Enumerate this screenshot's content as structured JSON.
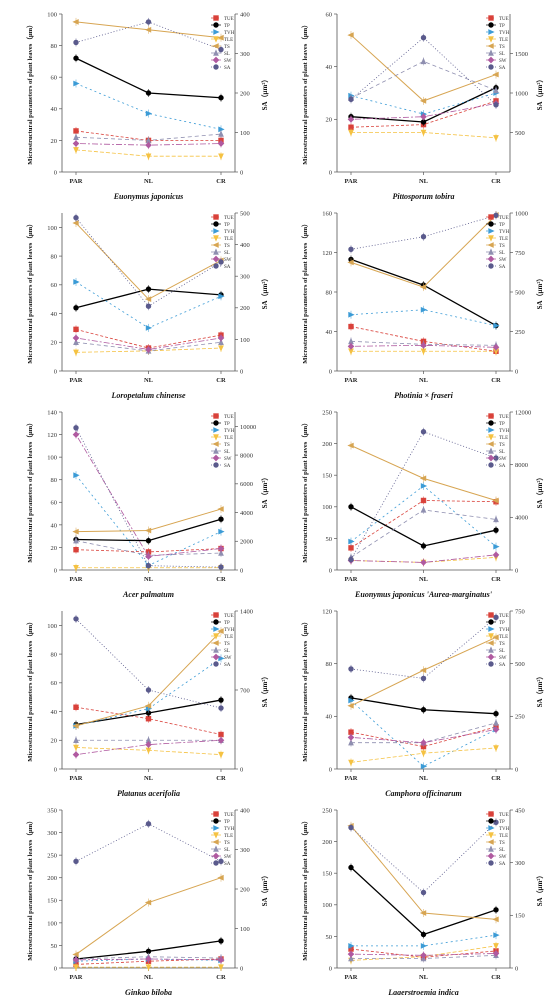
{
  "figure": {
    "x_categories": [
      "PAR",
      "NL",
      "CR"
    ],
    "left_axis_label": "Microstructural parameters of plant leaves（μm）",
    "right_axis_label": "SA（μm²）",
    "legend_entries": [
      "TUE",
      "TP",
      "TVH",
      "TLE",
      "TS",
      "SL",
      "SW",
      "SA"
    ],
    "series_colors": {
      "TUE": "#d9413a",
      "TP": "#000000",
      "TVH": "#3b9bd6",
      "TLE": "#f5c242",
      "TS": "#d7a552",
      "SL": "#8f8fb0",
      "SW": "#b05aa0",
      "SA": "#5a5a8c"
    }
  },
  "chart_data": [
    {
      "type": "line",
      "species": "Euonymus japonicus",
      "categories": [
        "PAR",
        "NL",
        "CR"
      ],
      "ylim_left": [
        0,
        100
      ],
      "yticks_left": [
        0,
        20,
        40,
        60,
        80,
        100
      ],
      "ylim_right": [
        0,
        400
      ],
      "yticks_right": [
        0,
        100,
        200,
        300,
        400
      ],
      "series": [
        {
          "name": "TUE",
          "values": [
            26,
            20,
            20
          ],
          "axis": "left"
        },
        {
          "name": "TP",
          "values": [
            72,
            50,
            47
          ],
          "axis": "left"
        },
        {
          "name": "TVH",
          "values": [
            56,
            37,
            27
          ],
          "axis": "left"
        },
        {
          "name": "TLE",
          "values": [
            14,
            10,
            10
          ],
          "axis": "left"
        },
        {
          "name": "TS",
          "values": [
            95,
            90,
            85
          ],
          "axis": "left"
        },
        {
          "name": "SL",
          "values": [
            22,
            20,
            24
          ],
          "axis": "left"
        },
        {
          "name": "SW",
          "values": [
            18,
            17,
            18
          ],
          "axis": "left"
        },
        {
          "name": "SA",
          "values": [
            328,
            380,
            310
          ],
          "axis": "right"
        }
      ]
    },
    {
      "type": "line",
      "species": "Pittosporum tobira",
      "categories": [
        "PAR",
        "NL",
        "CR"
      ],
      "ylim_left": [
        0,
        60
      ],
      "yticks_left": [
        0,
        20,
        40,
        60
      ],
      "ylim_right": [
        0,
        2000
      ],
      "yticks_right": [
        500,
        1000,
        1500
      ],
      "series": [
        {
          "name": "TUE",
          "values": [
            17,
            18,
            27
          ],
          "axis": "left"
        },
        {
          "name": "TP",
          "values": [
            21,
            19,
            32
          ],
          "axis": "left"
        },
        {
          "name": "TVH",
          "values": [
            29,
            22,
            30
          ],
          "axis": "left"
        },
        {
          "name": "TLE",
          "values": [
            15,
            15,
            13
          ],
          "axis": "left"
        },
        {
          "name": "TS",
          "values": [
            52,
            27,
            37
          ],
          "axis": "left"
        },
        {
          "name": "SL",
          "values": [
            28,
            42,
            31
          ],
          "axis": "left"
        },
        {
          "name": "SW",
          "values": [
            20,
            21,
            26
          ],
          "axis": "left"
        },
        {
          "name": "SA",
          "values": [
            920,
            1700,
            850
          ],
          "axis": "right"
        }
      ]
    },
    {
      "type": "line",
      "species": "Loropetalum chinense",
      "categories": [
        "PAR",
        "NL",
        "CR"
      ],
      "ylim_left": [
        0,
        110
      ],
      "yticks_left": [
        0,
        20,
        40,
        60,
        80,
        100
      ],
      "ylim_right": [
        0,
        500
      ],
      "yticks_right": [
        0,
        100,
        200,
        300,
        400,
        500
      ],
      "series": [
        {
          "name": "TUE",
          "values": [
            29,
            16,
            25
          ],
          "axis": "left"
        },
        {
          "name": "TP",
          "values": [
            44,
            57,
            53
          ],
          "axis": "left"
        },
        {
          "name": "TVH",
          "values": [
            62,
            30,
            52
          ],
          "axis": "left"
        },
        {
          "name": "TLE",
          "values": [
            13,
            14,
            16
          ],
          "axis": "left"
        },
        {
          "name": "TS",
          "values": [
            103,
            50,
            77
          ],
          "axis": "left"
        },
        {
          "name": "SL",
          "values": [
            20,
            14,
            20
          ],
          "axis": "left"
        },
        {
          "name": "SW",
          "values": [
            23,
            15,
            23
          ],
          "axis": "left"
        },
        {
          "name": "SA",
          "values": [
            485,
            205,
            345
          ],
          "axis": "right"
        }
      ]
    },
    {
      "type": "line",
      "species": "Photinia × fraseri",
      "categories": [
        "PAR",
        "NL",
        "CR"
      ],
      "ylim_left": [
        0,
        160
      ],
      "yticks_left": [
        0,
        40,
        80,
        120,
        160
      ],
      "ylim_right": [
        0,
        1000
      ],
      "yticks_right": [
        0,
        250,
        500,
        750,
        1000
      ],
      "series": [
        {
          "name": "TUE",
          "values": [
            45,
            30,
            20
          ],
          "axis": "left"
        },
        {
          "name": "TP",
          "values": [
            113,
            87,
            46
          ],
          "axis": "left"
        },
        {
          "name": "TVH",
          "values": [
            57,
            62,
            46
          ],
          "axis": "left"
        },
        {
          "name": "TLE",
          "values": [
            20,
            20,
            20
          ],
          "axis": "left"
        },
        {
          "name": "TS",
          "values": [
            110,
            85,
            158
          ],
          "axis": "left"
        },
        {
          "name": "SL",
          "values": [
            30,
            27,
            26
          ],
          "axis": "left"
        },
        {
          "name": "SW",
          "values": [
            25,
            26,
            24
          ],
          "axis": "left"
        },
        {
          "name": "SA",
          "values": [
            770,
            850,
            985
          ],
          "axis": "right"
        }
      ]
    },
    {
      "type": "line",
      "species": "Acer palmatum",
      "categories": [
        "PAR",
        "NL",
        "CR"
      ],
      "ylim_left": [
        0,
        140
      ],
      "yticks_left": [
        0,
        20,
        40,
        60,
        80,
        100,
        120,
        140
      ],
      "ylim_right": [
        0,
        11000
      ],
      "yticks_right": [
        0,
        2000,
        4000,
        6000,
        8000,
        10000
      ],
      "series": [
        {
          "name": "TUE",
          "values": [
            18,
            16,
            19
          ],
          "axis": "left"
        },
        {
          "name": "TP",
          "values": [
            27,
            26,
            45
          ],
          "axis": "left"
        },
        {
          "name": "TVH",
          "values": [
            84,
            4,
            34
          ],
          "axis": "left"
        },
        {
          "name": "TLE",
          "values": [
            2,
            2,
            2
          ],
          "axis": "left"
        },
        {
          "name": "TS",
          "values": [
            34,
            35,
            54
          ],
          "axis": "left"
        },
        {
          "name": "SL",
          "values": [
            26,
            13,
            15
          ],
          "axis": "left"
        },
        {
          "name": "SW",
          "values": [
            120,
            12,
            19
          ],
          "axis": "left"
        },
        {
          "name": "SA",
          "values": [
            9900,
            300,
            200
          ],
          "axis": "right"
        }
      ]
    },
    {
      "type": "line",
      "species": "Euonymus japonicus 'Aurea-marginatus'",
      "categories": [
        "PAR",
        "NL",
        "CR"
      ],
      "ylim_left": [
        0,
        250
      ],
      "yticks_left": [
        0,
        50,
        100,
        150,
        200,
        250
      ],
      "ylim_right": [
        0,
        12000
      ],
      "yticks_right": [
        0,
        4000,
        8000,
        12000
      ],
      "series": [
        {
          "name": "TUE",
          "values": [
            35,
            110,
            108
          ],
          "axis": "left"
        },
        {
          "name": "TP",
          "values": [
            100,
            38,
            63
          ],
          "axis": "left"
        },
        {
          "name": "TVH",
          "values": [
            45,
            133,
            37
          ],
          "axis": "left"
        },
        {
          "name": "TLE",
          "values": [
            15,
            12,
            20
          ],
          "axis": "left"
        },
        {
          "name": "TS",
          "values": [
            197,
            145,
            110
          ],
          "axis": "left"
        },
        {
          "name": "SL",
          "values": [
            20,
            95,
            80
          ],
          "axis": "left"
        },
        {
          "name": "SW",
          "values": [
            15,
            12,
            24
          ],
          "axis": "left"
        },
        {
          "name": "SA",
          "values": [
            800,
            10500,
            8500
          ],
          "axis": "right"
        }
      ]
    },
    {
      "type": "line",
      "species": "Platanus acerifolia",
      "categories": [
        "PAR",
        "NL",
        "CR"
      ],
      "ylim_left": [
        0,
        110
      ],
      "yticks_left": [
        0,
        20,
        40,
        60,
        80,
        100
      ],
      "ylim_right": [
        0,
        1400
      ],
      "yticks_right": [
        0,
        700,
        1400
      ],
      "series": [
        {
          "name": "TUE",
          "values": [
            43,
            35,
            24
          ],
          "axis": "left"
        },
        {
          "name": "TP",
          "values": [
            31,
            39,
            48
          ],
          "axis": "left"
        },
        {
          "name": "TVH",
          "values": [
            30,
            42,
            77
          ],
          "axis": "left"
        },
        {
          "name": "TLE",
          "values": [
            15,
            13,
            10
          ],
          "axis": "left"
        },
        {
          "name": "TS",
          "values": [
            30,
            44,
            96
          ],
          "axis": "left"
        },
        {
          "name": "SL",
          "values": [
            20,
            20,
            20
          ],
          "axis": "left"
        },
        {
          "name": "SW",
          "values": [
            10,
            17,
            20
          ],
          "axis": "left"
        },
        {
          "name": "SA",
          "values": [
            1330,
            700,
            540
          ],
          "axis": "right"
        }
      ]
    },
    {
      "type": "line",
      "species": "Camphora officinarum",
      "categories": [
        "PAR",
        "NL",
        "CR"
      ],
      "ylim_left": [
        0,
        120
      ],
      "yticks_left": [
        0,
        40,
        80,
        120
      ],
      "ylim_right": [
        0,
        750
      ],
      "yticks_right": [
        0,
        250,
        500,
        750
      ],
      "series": [
        {
          "name": "TUE",
          "values": [
            28,
            17,
            32
          ],
          "axis": "left"
        },
        {
          "name": "TP",
          "values": [
            54,
            45,
            42
          ],
          "axis": "left"
        },
        {
          "name": "TVH",
          "values": [
            52,
            2,
            30
          ],
          "axis": "left"
        },
        {
          "name": "TLE",
          "values": [
            5,
            12,
            16
          ],
          "axis": "left"
        },
        {
          "name": "TS",
          "values": [
            48,
            75,
            100
          ],
          "axis": "left"
        },
        {
          "name": "SL",
          "values": [
            20,
            20,
            35
          ],
          "axis": "left"
        },
        {
          "name": "SW",
          "values": [
            24,
            20,
            30
          ],
          "axis": "left"
        },
        {
          "name": "SA",
          "values": [
            475,
            430,
            720
          ],
          "axis": "right"
        }
      ]
    },
    {
      "type": "line",
      "species": "Ginkgo biloba",
      "categories": [
        "PAR",
        "NL",
        "CR"
      ],
      "ylim_left": [
        0,
        350
      ],
      "yticks_left": [
        0,
        50,
        100,
        150,
        200,
        250,
        300,
        350
      ],
      "ylim_right": [
        0,
        400
      ],
      "yticks_right": [
        0,
        100,
        200,
        300,
        400
      ],
      "series": [
        {
          "name": "TUE",
          "values": [
            8,
            15,
            20
          ],
          "axis": "left"
        },
        {
          "name": "TP",
          "values": [
            20,
            37,
            60
          ],
          "axis": "left"
        },
        {
          "name": "TVH",
          "values": [
            15,
            20,
            17
          ],
          "axis": "left"
        },
        {
          "name": "TLE",
          "values": [
            2,
            2,
            2
          ],
          "axis": "left"
        },
        {
          "name": "TS",
          "values": [
            30,
            145,
            200
          ],
          "axis": "left"
        },
        {
          "name": "SL",
          "values": [
            20,
            25,
            22
          ],
          "axis": "left"
        },
        {
          "name": "SW",
          "values": [
            18,
            20,
            18
          ],
          "axis": "left"
        },
        {
          "name": "SA",
          "values": [
            270,
            365,
            270
          ],
          "axis": "right"
        }
      ]
    },
    {
      "type": "line",
      "species": "Lagerstroemia indica",
      "categories": [
        "PAR",
        "NL",
        "CR"
      ],
      "ylim_left": [
        0,
        250
      ],
      "yticks_left": [
        0,
        50,
        100,
        150,
        200,
        250
      ],
      "ylim_right": [
        0,
        450
      ],
      "yticks_right": [
        0,
        150,
        300,
        450
      ],
      "series": [
        {
          "name": "TUE",
          "values": [
            30,
            17,
            27
          ],
          "axis": "left"
        },
        {
          "name": "TP",
          "values": [
            159,
            53,
            92
          ],
          "axis": "left"
        },
        {
          "name": "TVH",
          "values": [
            35,
            35,
            52
          ],
          "axis": "left"
        },
        {
          "name": "TLE",
          "values": [
            12,
            18,
            35
          ],
          "axis": "left"
        },
        {
          "name": "TS",
          "values": [
            225,
            87,
            77
          ],
          "axis": "left"
        },
        {
          "name": "SL",
          "values": [
            15,
            15,
            20
          ],
          "axis": "left"
        },
        {
          "name": "SW",
          "values": [
            22,
            20,
            23
          ],
          "axis": "left"
        },
        {
          "name": "SA",
          "values": [
            400,
            215,
            415
          ],
          "axis": "right"
        }
      ]
    }
  ]
}
